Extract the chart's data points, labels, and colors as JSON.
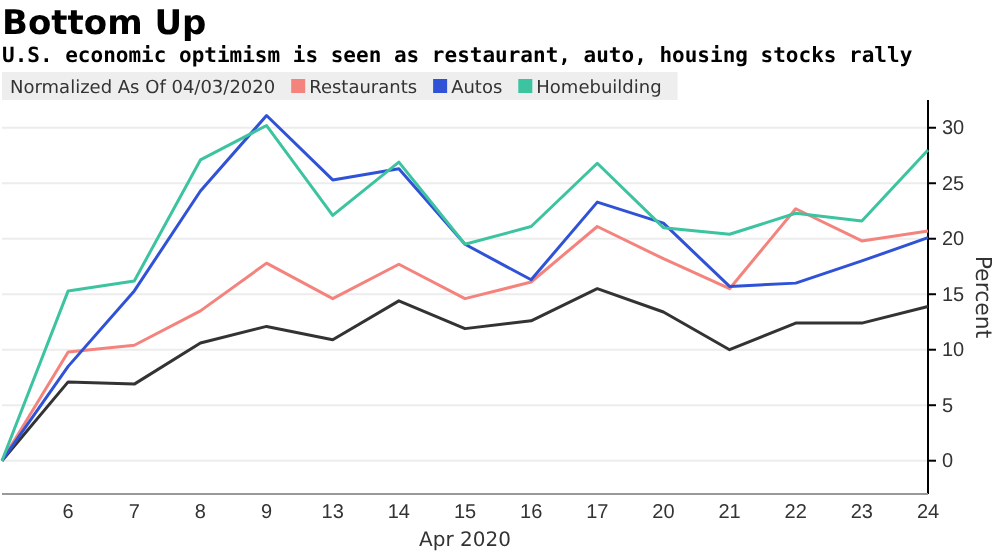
{
  "chart_data": {
    "type": "line",
    "title": "Bottom Up",
    "subtitle": "U.S. economic optimism is seen as restaurant, auto, housing stocks rally",
    "legend_title": "Normalized As Of 04/03/2020",
    "xlabel": "Apr 2020",
    "ylabel": "Percent",
    "categories": [
      null,
      "6",
      "7",
      "8",
      "9",
      "13",
      "14",
      "15",
      "16",
      "17",
      "20",
      "21",
      "22",
      "23",
      "24"
    ],
    "series": [
      {
        "color": "#333333",
        "values": [
          0,
          7.1,
          6.9,
          10.6,
          12.1,
          10.9,
          14.4,
          11.9,
          12.6,
          15.5,
          13.4,
          10.0,
          12.4,
          12.4,
          13.9
        ]
      },
      {
        "name": "Restaurants",
        "color": "#f4837d",
        "values": [
          0,
          9.8,
          10.4,
          13.5,
          17.8,
          14.6,
          17.7,
          14.6,
          16.1,
          21.1,
          18.2,
          15.5,
          22.7,
          19.8,
          20.7
        ]
      },
      {
        "name": "Autos",
        "color": "#2f52d6",
        "values": [
          0,
          8.5,
          15.3,
          24.3,
          31.1,
          25.3,
          26.3,
          19.5,
          16.3,
          23.3,
          21.4,
          15.7,
          16.0,
          18.0,
          20.1
        ]
      },
      {
        "name": "Homebuilding",
        "color": "#3cc3a0",
        "values": [
          0,
          15.3,
          16.2,
          27.1,
          30.2,
          22.1,
          26.9,
          19.5,
          21.1,
          26.8,
          21.0,
          20.4,
          22.3,
          21.6,
          28.0
        ]
      }
    ],
    "ylim": [
      -3,
      32.5
    ],
    "yticks": [
      0,
      5,
      10,
      15,
      20,
      25,
      30
    ],
    "grid": "y",
    "legend": "top left",
    "marker": "none",
    "line_style": "solid"
  }
}
